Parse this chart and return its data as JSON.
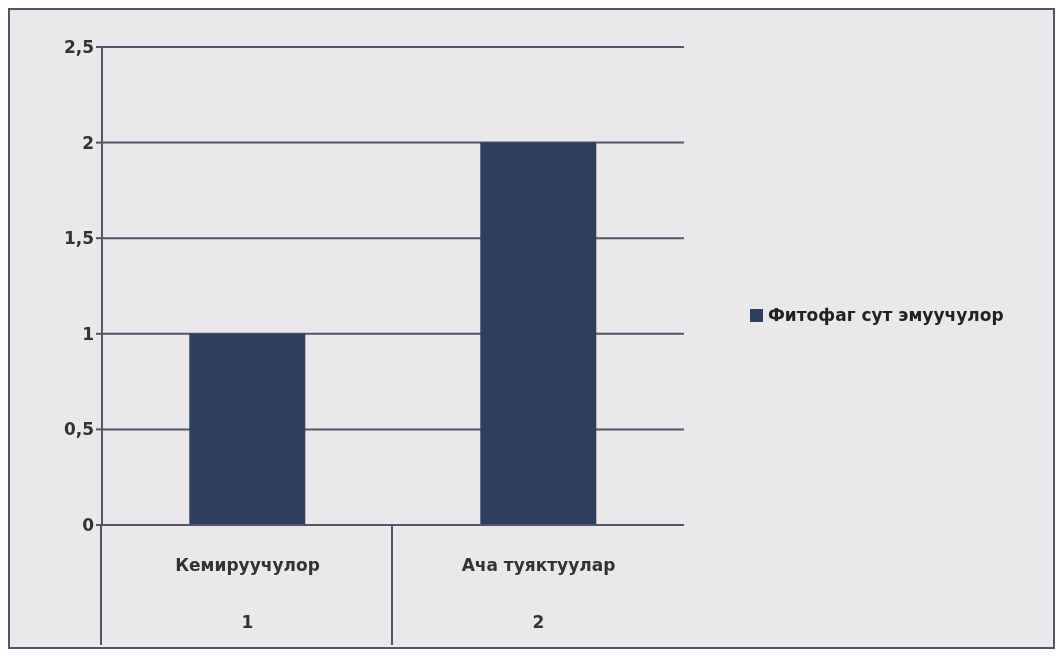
{
  "chart_data": {
    "type": "bar",
    "categories": [
      "Кемируучулор",
      "Ача туяктуулар"
    ],
    "series": [
      {
        "name": "Фитофаг сут эмуучулор",
        "color": "#2e3f5e",
        "values": [
          1,
          2
        ]
      }
    ],
    "ylim": [
      0,
      2.5
    ],
    "yticks": [
      0,
      {
        "value": 0.5,
        "label": "0,5"
      },
      1,
      {
        "value": 1.5,
        "label": "1,5"
      },
      2,
      {
        "value": 2.5,
        "label": "2,5"
      }
    ],
    "annotations": [
      "1",
      "2"
    ],
    "grid": "y",
    "legend": "right"
  }
}
